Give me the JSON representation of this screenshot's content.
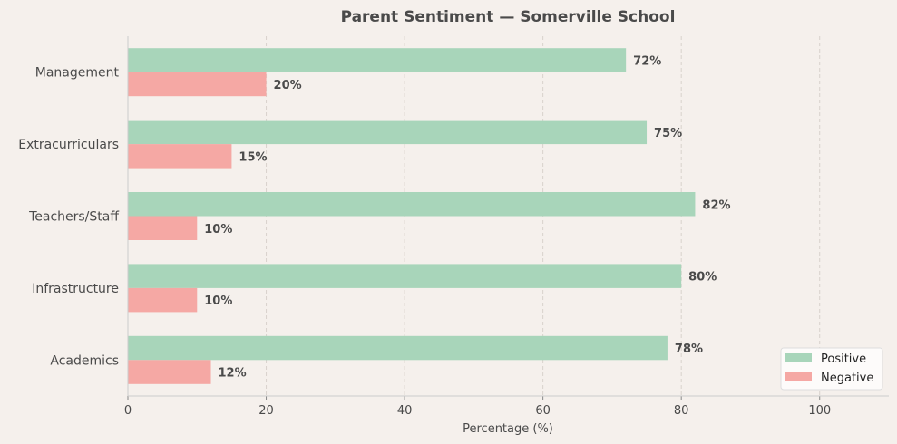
{
  "chart_data": {
    "type": "bar",
    "orientation": "horizontal",
    "title": "Parent Sentiment — Somerville School",
    "xlabel": "Percentage (%)",
    "ylabel": "",
    "xlim": [
      0,
      110
    ],
    "xticks": [
      0,
      20,
      40,
      60,
      80,
      100
    ],
    "grid": "x-dashed",
    "legend": "bottom-right",
    "categories": [
      "Management",
      "Extracurriculars",
      "Teachers/Staff",
      "Infrastructure",
      "Academics"
    ],
    "series": [
      {
        "name": "Positive",
        "color": "#a8d5ba",
        "values": [
          72,
          75,
          82,
          80,
          78
        ],
        "labels": [
          "72%",
          "75%",
          "82%",
          "80%",
          "78%"
        ]
      },
      {
        "name": "Negative",
        "color": "#f5a8a4",
        "values": [
          20,
          15,
          10,
          10,
          12
        ],
        "labels": [
          "20%",
          "15%",
          "10%",
          "10%",
          "12%"
        ]
      }
    ]
  }
}
